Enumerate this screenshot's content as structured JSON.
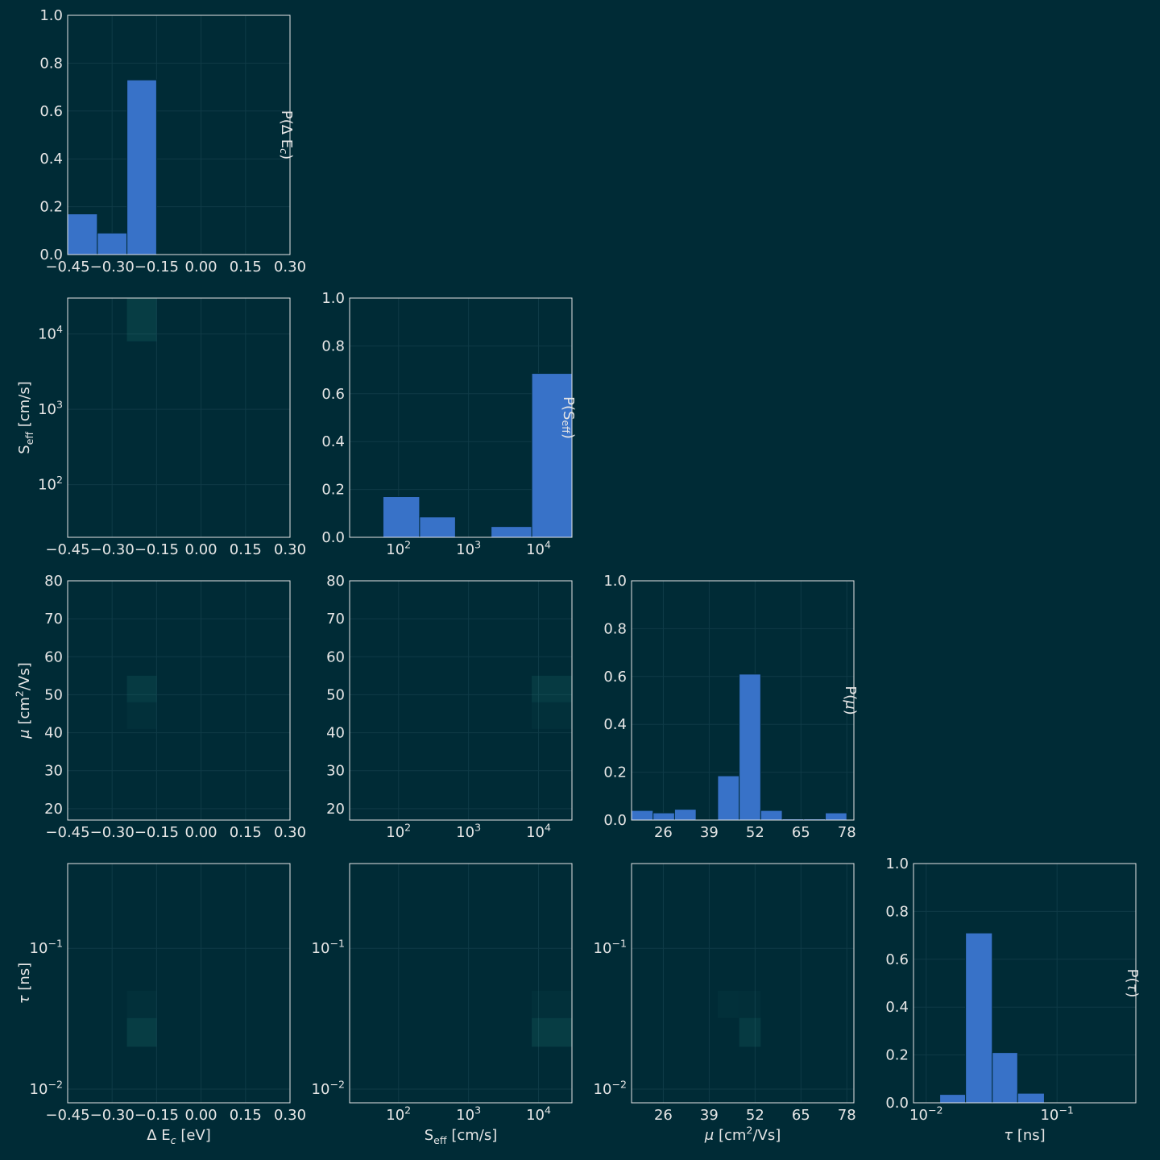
{
  "theme": {
    "background": "#002b36",
    "panel": "#002b36",
    "frame": "#e6e6e6",
    "grid": "#0f3b47",
    "bar": "#3872c8",
    "text": "#e6e6e6"
  },
  "chart_data": {
    "type": "corner",
    "params": [
      {
        "key": "dEc",
        "scale": "linear",
        "range": [
          -0.45,
          0.3
        ],
        "ticks": [
          -0.45,
          -0.3,
          -0.15,
          0.0,
          0.15,
          0.3
        ],
        "tick_labels": [
          "−0.45",
          "−0.30",
          "−0.15",
          "0.00",
          "0.15",
          "0.30"
        ],
        "axis_label": [
          "Δ E",
          {
            "t": "c",
            "sub": true,
            "it": true
          },
          " [eV]"
        ],
        "hist_label": [
          "P(Δ E",
          {
            "t": "c",
            "sub": true,
            "it": true
          },
          ")"
        ],
        "hist": {
          "edges": [
            -0.45,
            -0.35,
            -0.25,
            -0.15,
            -0.05,
            0.05,
            0.15,
            0.25,
            0.3
          ],
          "values": [
            0.17,
            0.09,
            0.73,
            0,
            0,
            0,
            0,
            0
          ]
        }
      },
      {
        "key": "Seff",
        "scale": "log",
        "range": [
          20,
          30000
        ],
        "ticks": [
          100,
          1000,
          10000
        ],
        "tick_labels": [
          [
            "10",
            {
              "t": "2",
              "sup": true
            }
          ],
          [
            "10",
            {
              "t": "3",
              "sup": true
            }
          ],
          [
            "10",
            {
              "t": "4",
              "sup": true
            }
          ]
        ],
        "axis_label": [
          "S",
          {
            "t": "eff",
            "sub": true
          },
          " [cm/s]"
        ],
        "hist_label": [
          "P(S",
          {
            "t": "eff",
            "sub": true
          },
          ")"
        ],
        "hist": {
          "edges": [
            20,
            60,
            200,
            650,
            2100,
            8000,
            30000
          ],
          "values": [
            0,
            0.17,
            0.085,
            0,
            0.045,
            0.685
          ]
        }
      },
      {
        "key": "mu",
        "scale": "linear",
        "range": [
          17,
          80
        ],
        "ticks": [
          20,
          30,
          40,
          50,
          60,
          70,
          80
        ],
        "tick_labels": [
          "20",
          "30",
          "40",
          "50",
          "60",
          "70",
          "80"
        ],
        "xticks": [
          26,
          39,
          52,
          65,
          78
        ],
        "xtick_labels": [
          "26",
          "39",
          "52",
          "65",
          "78"
        ],
        "axis_label": [
          {
            "t": "μ",
            "it": true
          },
          " [cm",
          {
            "t": "2",
            "sup": true
          },
          "/Vs]"
        ],
        "hist_label": [
          "P(",
          {
            "t": "μ",
            "it": true
          },
          ")"
        ],
        "hist": {
          "edges": [
            17,
            23.1,
            29.2,
            35.3,
            41.4,
            47.5,
            53.6,
            59.7,
            65.8,
            71.9,
            78,
            80
          ],
          "values": [
            0.04,
            0.03,
            0.045,
            0.002,
            0.185,
            0.61,
            0.04,
            0.005,
            0.005,
            0.03,
            0
          ]
        }
      },
      {
        "key": "tau",
        "scale": "log",
        "range": [
          0.008,
          0.4
        ],
        "ticks": [
          0.01,
          0.1
        ],
        "tick_labels": [
          [
            "10",
            {
              "t": "−2",
              "sup": true
            }
          ],
          [
            "10",
            {
              "t": "−1",
              "sup": true
            }
          ]
        ],
        "axis_label": [
          {
            "t": "τ",
            "it": true
          },
          " [ns]"
        ],
        "hist_label": [
          "P(",
          {
            "t": "τ",
            "it": true
          },
          ")"
        ],
        "hist": {
          "edges": [
            0.008,
            0.0127,
            0.02,
            0.032,
            0.05,
            0.08,
            0.127,
            0.2,
            0.4
          ],
          "values": [
            0,
            0.035,
            0.71,
            0.21,
            0.04,
            0,
            0,
            0
          ]
        }
      }
    ],
    "hist_yrange": [
      0,
      1
    ],
    "hist_yticks": [
      0.0,
      0.2,
      0.4,
      0.6,
      0.8,
      1.0
    ],
    "hist_ytick_labels": [
      "0.0",
      "0.2",
      "0.4",
      "0.6",
      "0.8",
      "1.0"
    ],
    "joint": [
      {
        "row": 1,
        "col": 0,
        "cells": [
          {
            "x": [
              -0.25,
              -0.15
            ],
            "y": [
              8000,
              30000
            ],
            "a": 0.16
          }
        ]
      },
      {
        "row": 2,
        "col": 0,
        "cells": [
          {
            "x": [
              -0.25,
              -0.15
            ],
            "y": [
              48,
              55
            ],
            "a": 0.14
          },
          {
            "x": [
              -0.25,
              -0.15
            ],
            "y": [
              41,
              48
            ],
            "a": 0.05
          }
        ]
      },
      {
        "row": 2,
        "col": 1,
        "cells": [
          {
            "x": [
              8000,
              30000
            ],
            "y": [
              48,
              55
            ],
            "a": 0.14
          },
          {
            "x": [
              8000,
              30000
            ],
            "y": [
              41,
              48
            ],
            "a": 0.05
          }
        ]
      },
      {
        "row": 3,
        "col": 0,
        "cells": [
          {
            "x": [
              -0.25,
              -0.15
            ],
            "y": [
              0.02,
              0.032
            ],
            "a": 0.16
          },
          {
            "x": [
              -0.25,
              -0.15
            ],
            "y": [
              0.032,
              0.05
            ],
            "a": 0.05
          }
        ]
      },
      {
        "row": 3,
        "col": 1,
        "cells": [
          {
            "x": [
              8000,
              30000
            ],
            "y": [
              0.02,
              0.032
            ],
            "a": 0.16
          },
          {
            "x": [
              8000,
              30000
            ],
            "y": [
              0.032,
              0.05
            ],
            "a": 0.05
          }
        ]
      },
      {
        "row": 3,
        "col": 2,
        "cells": [
          {
            "x": [
              47.5,
              53.6
            ],
            "y": [
              0.02,
              0.032
            ],
            "a": 0.14
          },
          {
            "x": [
              41.4,
              47.5
            ],
            "y": [
              0.032,
              0.05
            ],
            "a": 0.05
          },
          {
            "x": [
              47.5,
              53.6
            ],
            "y": [
              0.032,
              0.05
            ],
            "a": 0.04
          }
        ]
      }
    ],
    "grid": true
  }
}
